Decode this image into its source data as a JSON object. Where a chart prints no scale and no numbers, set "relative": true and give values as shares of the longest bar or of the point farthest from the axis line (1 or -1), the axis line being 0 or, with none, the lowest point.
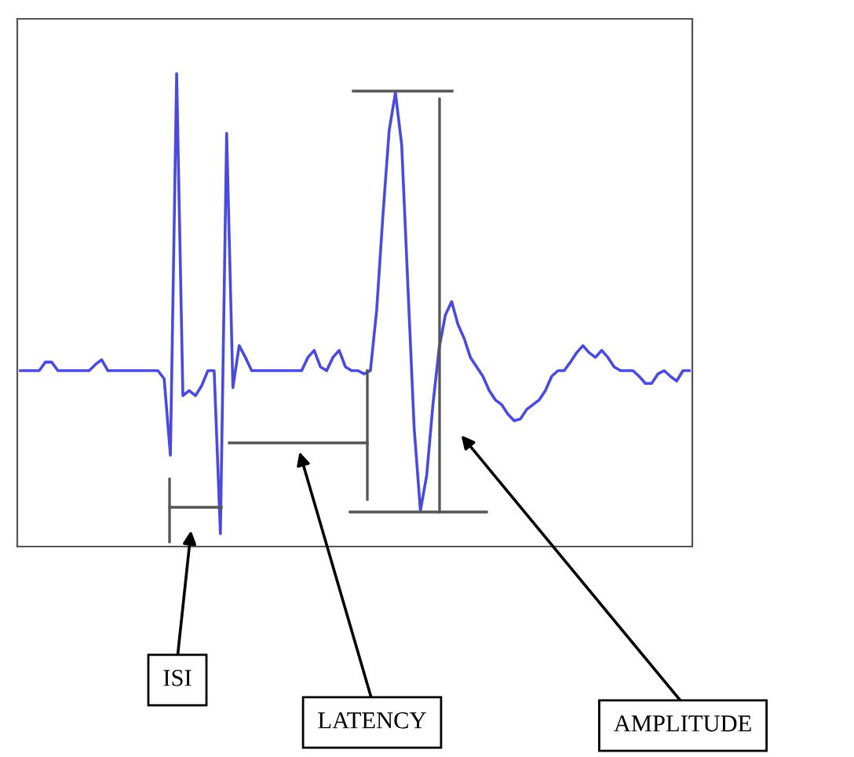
{
  "chart_data": {
    "type": "line",
    "relative": true,
    "tick_labels": false,
    "categories": [
      null,
      null,
      null,
      null,
      null,
      null,
      null,
      null,
      null,
      null,
      null,
      null,
      null,
      null,
      null,
      null,
      null,
      null,
      null,
      null,
      null,
      null,
      null,
      null,
      null,
      null,
      null,
      null,
      null,
      null,
      null,
      null,
      null,
      null,
      null,
      null,
      null,
      null,
      null,
      null,
      null,
      null,
      null,
      null,
      null,
      null,
      null,
      null,
      null,
      null,
      null,
      null,
      null,
      null,
      null,
      null,
      null,
      null,
      null,
      null,
      null,
      null,
      null,
      null,
      null,
      null,
      null,
      null,
      null,
      null,
      null,
      null,
      null,
      null,
      null,
      null,
      null,
      null,
      null,
      null,
      null,
      null,
      null,
      null,
      null,
      null,
      null,
      null,
      null,
      null,
      null,
      null,
      null,
      null,
      null,
      null,
      null,
      null,
      null,
      null,
      null,
      null,
      null,
      null,
      null,
      null,
      null,
      null
    ],
    "series": [
      {
        "color": "#4a4ae0",
        "values": [
          0.372,
          0.372,
          0.372,
          0.372,
          0.39,
          0.39,
          0.372,
          0.372,
          0.372,
          0.372,
          0.372,
          0.372,
          0.385,
          0.395,
          0.372,
          0.372,
          0.372,
          0.372,
          0.372,
          0.372,
          0.372,
          0.372,
          0.372,
          0.355,
          0.193,
          1.0,
          0.319,
          0.33,
          0.319,
          0.34,
          0.372,
          0.372,
          0.027,
          0.874,
          0.336,
          0.425,
          0.4,
          0.372,
          0.372,
          0.372,
          0.372,
          0.372,
          0.372,
          0.372,
          0.372,
          0.372,
          0.4,
          0.415,
          0.38,
          0.372,
          0.4,
          0.415,
          0.38,
          0.372,
          0.372,
          0.365,
          0.372,
          0.5,
          0.7,
          0.88,
          0.96,
          0.85,
          0.55,
          0.25,
          0.076,
          0.15,
          0.3,
          0.42,
          0.49,
          0.518,
          0.47,
          0.44,
          0.4,
          0.38,
          0.36,
          0.33,
          0.31,
          0.3,
          0.28,
          0.266,
          0.27,
          0.29,
          0.3,
          0.31,
          0.33,
          0.36,
          0.372,
          0.372,
          0.39,
          0.41,
          0.425,
          0.41,
          0.4,
          0.415,
          0.4,
          0.38,
          0.372,
          0.372,
          0.372,
          0.36,
          0.345,
          0.345,
          0.365,
          0.372,
          0.36,
          0.35,
          0.372,
          0.372
        ]
      }
    ],
    "annotations": [
      "ISI",
      "LATENCY",
      "AMPLITUDE"
    ]
  }
}
